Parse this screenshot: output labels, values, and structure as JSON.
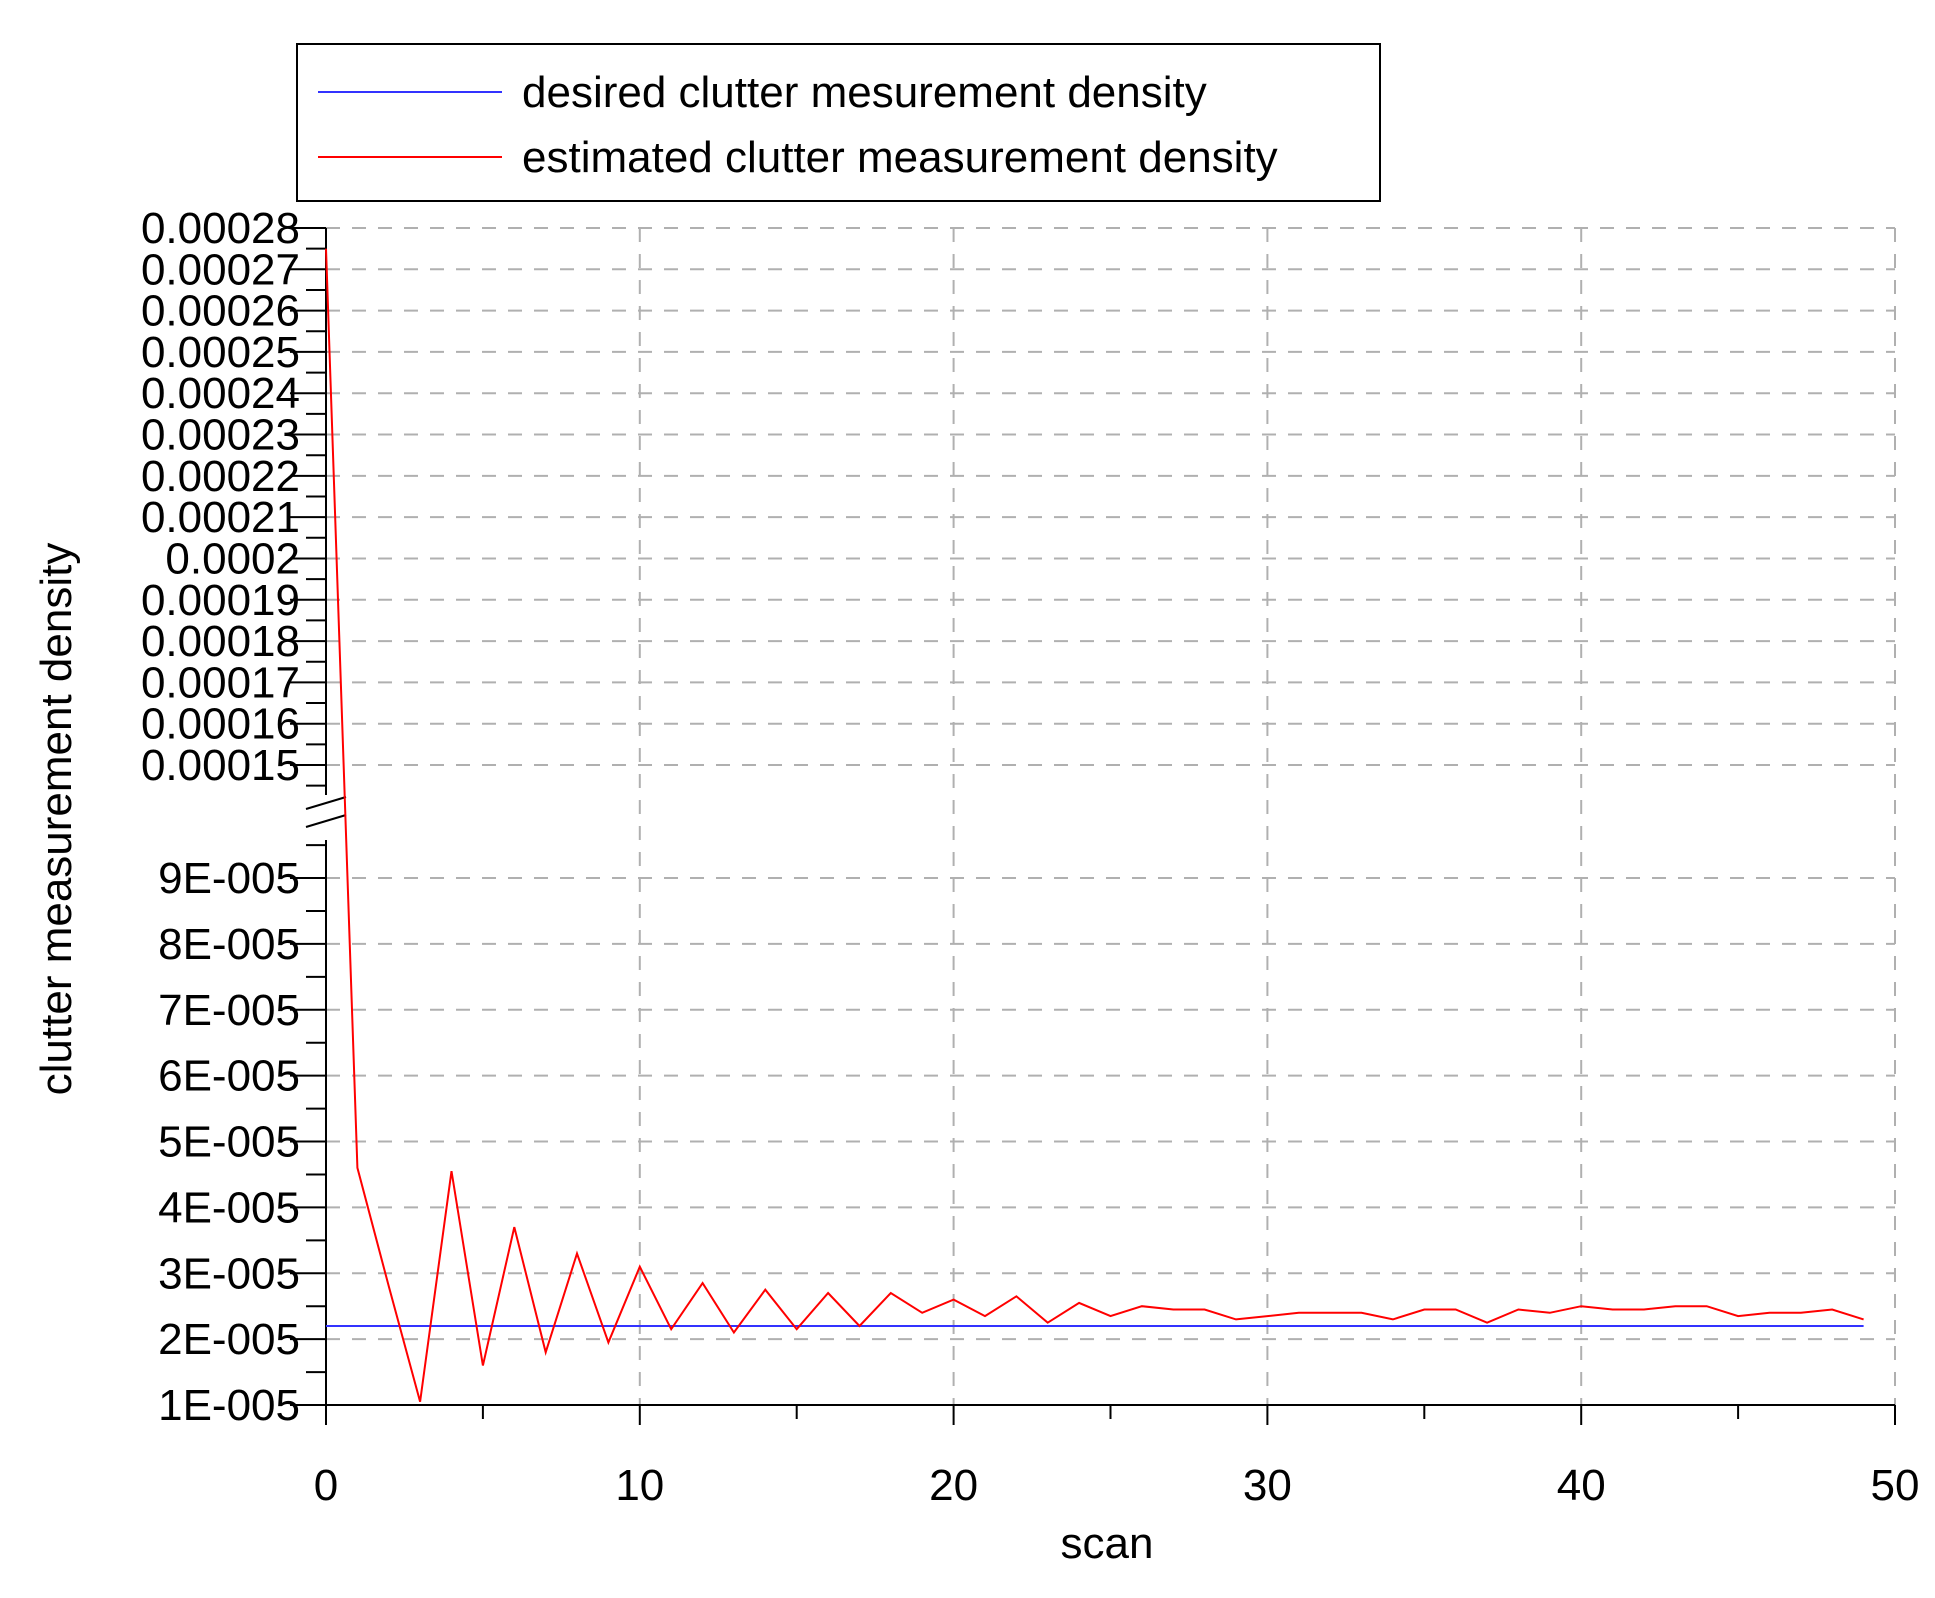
{
  "chart_data": {
    "type": "line",
    "xlabel": "scan",
    "ylabel": "clutter measurement density",
    "xlim": [
      0,
      50
    ],
    "x_ticks": [
      "0",
      "10",
      "20",
      "30",
      "40",
      "50"
    ],
    "y_scale": "broken",
    "y_lower_range": [
      1e-05,
      9.5e-05
    ],
    "y_upper_range": [
      0.000143,
      0.00028
    ],
    "y_ticks_lower": [
      "1E-005",
      "2E-005",
      "3E-005",
      "4E-005",
      "5E-005",
      "6E-005",
      "7E-005",
      "8E-005",
      "9E-005"
    ],
    "y_ticks_upper": [
      "0.00015",
      "0.00016",
      "0.00017",
      "0.00018",
      "0.00019",
      "0.0002",
      "0.00021",
      "0.00022",
      "0.00023",
      "0.00024",
      "0.00025",
      "0.00026",
      "0.00027",
      "0.00028"
    ],
    "grid": true,
    "legend_position": "top-left",
    "series": [
      {
        "name": "desired clutter mesurement density",
        "color": "#3333ff",
        "x": [
          0,
          49
        ],
        "y": [
          2.2e-05,
          2.2e-05
        ]
      },
      {
        "name": "estimated clutter measurement density",
        "color": "#ff0000",
        "x": [
          0,
          1,
          2,
          3,
          4,
          5,
          6,
          7,
          8,
          9,
          10,
          11,
          12,
          13,
          14,
          15,
          16,
          17,
          18,
          19,
          20,
          21,
          22,
          23,
          24,
          25,
          26,
          27,
          28,
          29,
          30,
          31,
          32,
          33,
          34,
          35,
          36,
          37,
          38,
          39,
          40,
          41,
          42,
          43,
          44,
          45,
          46,
          47,
          48,
          49
        ],
        "y": [
          0.000275,
          4.6e-05,
          2.8e-05,
          1.05e-05,
          4.55e-05,
          1.6e-05,
          3.7e-05,
          1.8e-05,
          3.3e-05,
          1.95e-05,
          3.1e-05,
          2.15e-05,
          2.85e-05,
          2.1e-05,
          2.75e-05,
          2.15e-05,
          2.7e-05,
          2.2e-05,
          2.7e-05,
          2.4e-05,
          2.6e-05,
          2.35e-05,
          2.65e-05,
          2.25e-05,
          2.55e-05,
          2.35e-05,
          2.5e-05,
          2.45e-05,
          2.45e-05,
          2.3e-05,
          2.35e-05,
          2.4e-05,
          2.4e-05,
          2.4e-05,
          2.3e-05,
          2.45e-05,
          2.45e-05,
          2.25e-05,
          2.45e-05,
          2.4e-05,
          2.5e-05,
          2.45e-05,
          2.45e-05,
          2.5e-05,
          2.5e-05,
          2.35e-05,
          2.4e-05,
          2.4e-05,
          2.45e-05,
          2.3e-05
        ]
      }
    ]
  }
}
